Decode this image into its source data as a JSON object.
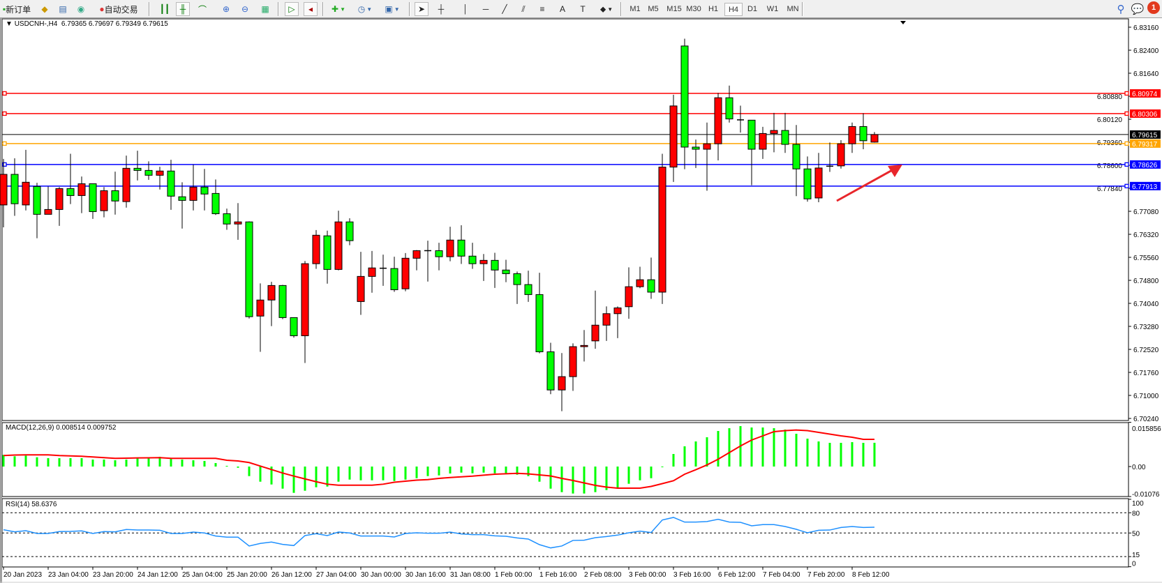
{
  "toolbar": {
    "new_order": "新订单",
    "auto_trading": "自动交易",
    "timeframes": [
      "M1",
      "M5",
      "M15",
      "M30",
      "H1",
      "H4",
      "D1",
      "W1",
      "MN"
    ],
    "selected_timeframe": "H4",
    "notification_count": "1",
    "icons": [
      "new-order-icon",
      "market-watch-icon",
      "navigator-icon",
      "signals-icon",
      "auto-trading-icon",
      "bar-chart-icon",
      "candlestick-icon",
      "line-chart-icon",
      "zoom-in-icon",
      "zoom-out-icon",
      "tile-windows-icon",
      "auto-scroll-icon",
      "chart-shift-icon",
      "indicators-icon",
      "periods-icon",
      "templates-icon",
      "cursor-icon",
      "crosshair-icon",
      "vertical-line-icon",
      "horizontal-line-icon",
      "trendline-icon",
      "equidistant-channel-icon",
      "fibonacci-icon",
      "text-icon",
      "text-label-icon",
      "arrows-icon",
      "search-icon",
      "chat-icon"
    ]
  },
  "chart_header": {
    "symbol": "USDCNH-,H4",
    "ohlc": "6.79365 6.79697 6.79349 6.79615"
  },
  "macd_header": "MACD(12,26,9) 0.008514 0.009752",
  "rsi_header": "RSI(14) 58.6376",
  "chart_data": [
    {
      "type": "candlestick",
      "symbol": "USDCNH-",
      "timeframe": "H4",
      "bull_color": "#ff0000",
      "bear_color": "#00ff00",
      "y_ticks": [
        "6.83160",
        "6.82400",
        "6.81640",
        "6.80880",
        "6.80120",
        "6.79360",
        "6.78600",
        "6.77840",
        "6.77080",
        "6.76320",
        "6.75560",
        "6.74800",
        "6.74040",
        "6.73280",
        "6.72520",
        "6.71760",
        "6.71000",
        "6.70240"
      ],
      "ylim": [
        6.7024,
        6.8316
      ],
      "x_labels": [
        "20 Jan 2023",
        "23 Jan 04:00",
        "23 Jan 20:00",
        "24 Jan 12:00",
        "25 Jan 04:00",
        "25 Jan 20:00",
        "26 Jan 12:00",
        "27 Jan 04:00",
        "30 Jan 00:00",
        "30 Jan 16:00",
        "31 Jan 08:00",
        "1 Feb 00:00",
        "1 Feb 16:00",
        "2 Feb 08:00",
        "3 Feb 00:00",
        "3 Feb 16:00",
        "6 Feb 12:00",
        "7 Feb 04:00",
        "7 Feb 20:00",
        "8 Feb 12:00"
      ],
      "x_label_every": 4,
      "ohlc": [
        [
          6.7729,
          6.7881,
          6.7655,
          6.783
        ],
        [
          6.783,
          6.7883,
          6.7693,
          6.7733
        ],
        [
          6.7729,
          6.7911,
          6.7711,
          6.7804
        ],
        [
          6.779,
          6.7802,
          6.7619,
          6.7698
        ],
        [
          6.7698,
          6.779,
          6.7698,
          6.7714
        ],
        [
          6.7714,
          6.7788,
          6.766,
          6.7783
        ],
        [
          6.7783,
          6.7898,
          6.7732,
          6.776
        ],
        [
          6.776,
          6.7823,
          6.7702,
          6.7799
        ],
        [
          6.7799,
          6.78,
          6.7683,
          6.7707
        ],
        [
          6.771,
          6.7788,
          6.7688,
          6.7776
        ],
        [
          6.7776,
          6.7839,
          6.7697,
          6.7742
        ],
        [
          6.774,
          6.7892,
          6.772,
          6.785
        ],
        [
          6.785,
          6.7908,
          6.781,
          6.7843
        ],
        [
          6.7843,
          6.7873,
          6.7812,
          6.7827
        ],
        [
          6.7827,
          6.7855,
          6.778,
          6.7841
        ],
        [
          6.7841,
          6.7878,
          6.7713,
          6.7758
        ],
        [
          6.7756,
          6.7804,
          6.7651,
          6.7744
        ],
        [
          6.7744,
          6.7862,
          6.7711,
          6.7788
        ],
        [
          6.7788,
          6.7848,
          6.7711,
          6.7765
        ],
        [
          6.7767,
          6.7813,
          6.7696,
          6.77
        ],
        [
          6.77,
          6.7717,
          6.7647,
          6.7666
        ],
        [
          6.7666,
          6.7735,
          6.7614,
          6.7673
        ],
        [
          6.7673,
          6.7675,
          6.7354,
          6.736
        ],
        [
          6.7362,
          6.747,
          6.7244,
          6.7415
        ],
        [
          6.7415,
          6.7475,
          6.7329,
          6.7463
        ],
        [
          6.7463,
          6.7465,
          6.7352,
          6.7357
        ],
        [
          6.7357,
          6.7358,
          6.7291,
          6.7297
        ],
        [
          6.7297,
          6.7544,
          6.7207,
          6.7535
        ],
        [
          6.7535,
          6.7646,
          6.7518,
          6.7629
        ],
        [
          6.7627,
          6.7644,
          6.7469,
          6.7516
        ],
        [
          6.7516,
          6.771,
          6.7513,
          6.7673
        ],
        [
          6.7673,
          6.7685,
          6.7596,
          6.7611
        ],
        [
          6.741,
          6.7574,
          6.7366,
          6.7493
        ],
        [
          6.7493,
          6.7577,
          6.7439,
          6.7521
        ],
        [
          6.752,
          6.7565,
          6.7462,
          6.752
        ],
        [
          6.7519,
          6.7558,
          6.7442,
          6.7449
        ],
        [
          6.7452,
          6.757,
          6.7444,
          6.7553
        ],
        [
          6.7553,
          6.758,
          6.7513,
          6.7578
        ],
        [
          6.7578,
          6.7611,
          6.7476,
          6.7578
        ],
        [
          6.7578,
          6.7604,
          6.7513,
          6.7558
        ],
        [
          6.7558,
          6.7657,
          6.7543,
          6.7613
        ],
        [
          6.7613,
          6.7662,
          6.7534,
          6.756
        ],
        [
          6.756,
          6.7604,
          6.7518,
          6.7535
        ],
        [
          6.7535,
          6.7567,
          6.7478,
          6.7546
        ],
        [
          6.7546,
          6.7571,
          6.7455,
          6.7514
        ],
        [
          6.7514,
          6.7548,
          6.7474,
          6.7502
        ],
        [
          6.7502,
          6.7509,
          6.7402,
          6.7466
        ],
        [
          6.7466,
          6.7512,
          6.7409,
          6.7433
        ],
        [
          6.7433,
          6.7505,
          6.7239,
          6.7244
        ],
        [
          6.7244,
          6.7274,
          6.7104,
          6.7118
        ],
        [
          6.7118,
          6.724,
          6.7048,
          6.7162
        ],
        [
          6.7162,
          6.7272,
          6.7115,
          6.7261
        ],
        [
          6.7261,
          6.7316,
          6.7212,
          6.7265
        ],
        [
          6.728,
          6.7446,
          6.7254,
          6.7332
        ],
        [
          6.7332,
          6.7394,
          6.728,
          6.737
        ],
        [
          6.737,
          6.7394,
          6.7289,
          6.7389
        ],
        [
          6.7393,
          6.7523,
          6.7353,
          6.7459
        ],
        [
          6.7459,
          6.7525,
          6.7454,
          6.7482
        ],
        [
          6.7482,
          6.7555,
          6.7419,
          6.7441
        ],
        [
          6.7441,
          6.7898,
          6.7402,
          6.7854
        ],
        [
          6.7854,
          6.8093,
          6.7805,
          6.8056
        ],
        [
          6.8254,
          6.8278,
          6.7847,
          6.792
        ],
        [
          6.792,
          6.7945,
          6.7851,
          6.7913
        ],
        [
          6.7913,
          6.8001,
          6.7776,
          6.7931
        ],
        [
          6.7931,
          6.8099,
          6.7876,
          6.8083
        ],
        [
          6.8083,
          6.8123,
          6.8001,
          6.8013
        ],
        [
          6.801,
          6.8057,
          6.7968,
          6.801
        ],
        [
          6.8009,
          6.8009,
          6.7794,
          6.7913
        ],
        [
          6.7913,
          6.7987,
          6.7881,
          6.7965
        ],
        [
          6.7965,
          6.8033,
          6.7903,
          6.7975
        ],
        [
          6.7975,
          6.8033,
          6.7901,
          6.7929
        ],
        [
          6.7929,
          6.7993,
          6.7758,
          6.7848
        ],
        [
          6.7848,
          6.7889,
          6.774,
          6.7749
        ],
        [
          6.7752,
          6.7901,
          6.7738,
          6.7851
        ],
        [
          6.7857,
          6.7935,
          6.7838,
          6.7857
        ],
        [
          6.7858,
          6.7943,
          6.7849,
          6.7931
        ],
        [
          6.7931,
          6.8001,
          6.7901,
          6.7988
        ],
        [
          6.7988,
          6.8032,
          6.7913,
          6.7941
        ],
        [
          6.79365,
          6.79697,
          6.79349,
          6.79615
        ]
      ],
      "current_price": {
        "value": 6.79615,
        "label": "6.79615",
        "color": "#000000"
      },
      "horizontal_lines": [
        {
          "value": 6.80974,
          "label": "6.80974",
          "color": "#ff0000"
        },
        {
          "value": 6.80306,
          "label": "6.80306",
          "color": "#ff0000"
        },
        {
          "value": 6.79317,
          "label": "6.79317",
          "color": "#ffa500"
        },
        {
          "value": 6.78626,
          "label": "6.78626",
          "color": "#0000ff"
        },
        {
          "value": 6.77913,
          "label": "6.77913",
          "color": "#0000ff"
        }
      ],
      "annotation": {
        "type": "arrow",
        "direction": "up-right",
        "color": "#e8262b"
      }
    },
    {
      "type": "bar+line",
      "indicator": "MACD(12,26,9)",
      "y_ticks": [
        "0.015856",
        "0.00",
        "-0.01076"
      ],
      "ylim": [
        -0.01076,
        0.015856
      ],
      "histogram_color": "#00ff00",
      "signal_color": "#ff0000",
      "macd": [
        0.00418,
        0.00368,
        0.00393,
        0.00333,
        0.003,
        0.003,
        0.003,
        0.003,
        0.0025,
        0.0025,
        0.00225,
        0.0025,
        0.00325,
        0.00325,
        0.0035,
        0.00283,
        0.0025,
        0.00225,
        0.002,
        0.00125,
        0.00025,
        -0.00043,
        -0.00343,
        -0.00543,
        -0.00643,
        -0.00793,
        -0.00943,
        -0.00868,
        -0.00743,
        -0.00718,
        -0.00543,
        -0.00468,
        -0.00493,
        -0.00493,
        -0.00493,
        -0.00518,
        -0.00468,
        -0.00418,
        -0.00343,
        -0.00318,
        -0.0025,
        -0.00218,
        -0.00243,
        -0.00218,
        -0.00243,
        -0.00268,
        -0.00293,
        -0.00343,
        -0.00543,
        -0.00793,
        -0.00918,
        -0.00968,
        -0.00968,
        -0.00918,
        -0.00843,
        -0.00768,
        -0.00618,
        -0.00493,
        -0.00418,
        -0.00025,
        0.0045,
        0.00725,
        0.009,
        0.0105,
        0.01275,
        0.01375,
        0.0145,
        0.014,
        0.014,
        0.01375,
        0.01325,
        0.01175,
        0.01,
        0.009,
        0.0085,
        0.0085,
        0.00875,
        0.0085,
        0.008514
      ],
      "signal": [
        0.00393,
        0.00413,
        0.00418,
        0.00418,
        0.00418,
        0.00393,
        0.0038,
        0.00368,
        0.00343,
        0.00318,
        0.00293,
        0.003,
        0.00308,
        0.00313,
        0.00318,
        0.00293,
        0.00293,
        0.00293,
        0.00293,
        0.00293,
        0.00225,
        0.002,
        0.00143,
        0.00018,
        -0.00108,
        -0.00233,
        -0.00343,
        -0.00443,
        -0.00543,
        -0.00633,
        -0.00668,
        -0.00668,
        -0.00668,
        -0.00668,
        -0.00633,
        -0.00563,
        -0.00525,
        -0.00488,
        -0.00468,
        -0.00425,
        -0.00393,
        -0.00368,
        -0.00343,
        -0.00308,
        -0.00275,
        -0.00258,
        -0.00243,
        -0.00263,
        -0.003,
        -0.00338,
        -0.00425,
        -0.005,
        -0.00588,
        -0.00675,
        -0.00738,
        -0.00775,
        -0.00775,
        -0.00775,
        -0.00713,
        -0.00613,
        -0.00508,
        -0.00275,
        -0.00113,
        0.00058,
        0.00263,
        0.005,
        0.00738,
        0.0095,
        0.011,
        0.0125,
        0.01288,
        0.01308,
        0.01288,
        0.01225,
        0.01163,
        0.011,
        0.0105,
        0.00975,
        0.009752
      ]
    },
    {
      "type": "line",
      "indicator": "RSI(14)",
      "y_ticks": [
        "100",
        "80",
        "50",
        "15",
        "0"
      ],
      "levels": [
        80,
        50,
        15
      ],
      "ylim": [
        0,
        100
      ],
      "color": "#1e90ff",
      "values": [
        54.8,
        51.7,
        53.4,
        49.3,
        49.3,
        52.1,
        52.4,
        53.1,
        49.3,
        52.1,
        51.7,
        55.2,
        54.5,
        54.5,
        54.1,
        49.3,
        49.3,
        51.4,
        50,
        45.5,
        43.8,
        43.8,
        30.7,
        34.5,
        36.6,
        33.1,
        31.4,
        46.2,
        49,
        46.2,
        51.4,
        50,
        45.5,
        45.5,
        45.5,
        44.1,
        49.3,
        50.3,
        49.6,
        49.6,
        51.3,
        48.6,
        47.6,
        47.6,
        45.8,
        45.1,
        42.7,
        41,
        32.7,
        27.9,
        30.7,
        39,
        39.3,
        43.1,
        44.8,
        46.9,
        50.3,
        52.7,
        50.7,
        69.3,
        73.1,
        66.2,
        66.2,
        67,
        70.3,
        66.2,
        65.8,
        60.7,
        62.4,
        62.4,
        59.6,
        55.5,
        50.3,
        54.1,
        54.4,
        58.2,
        59.6,
        58.2,
        58.6376
      ]
    }
  ]
}
